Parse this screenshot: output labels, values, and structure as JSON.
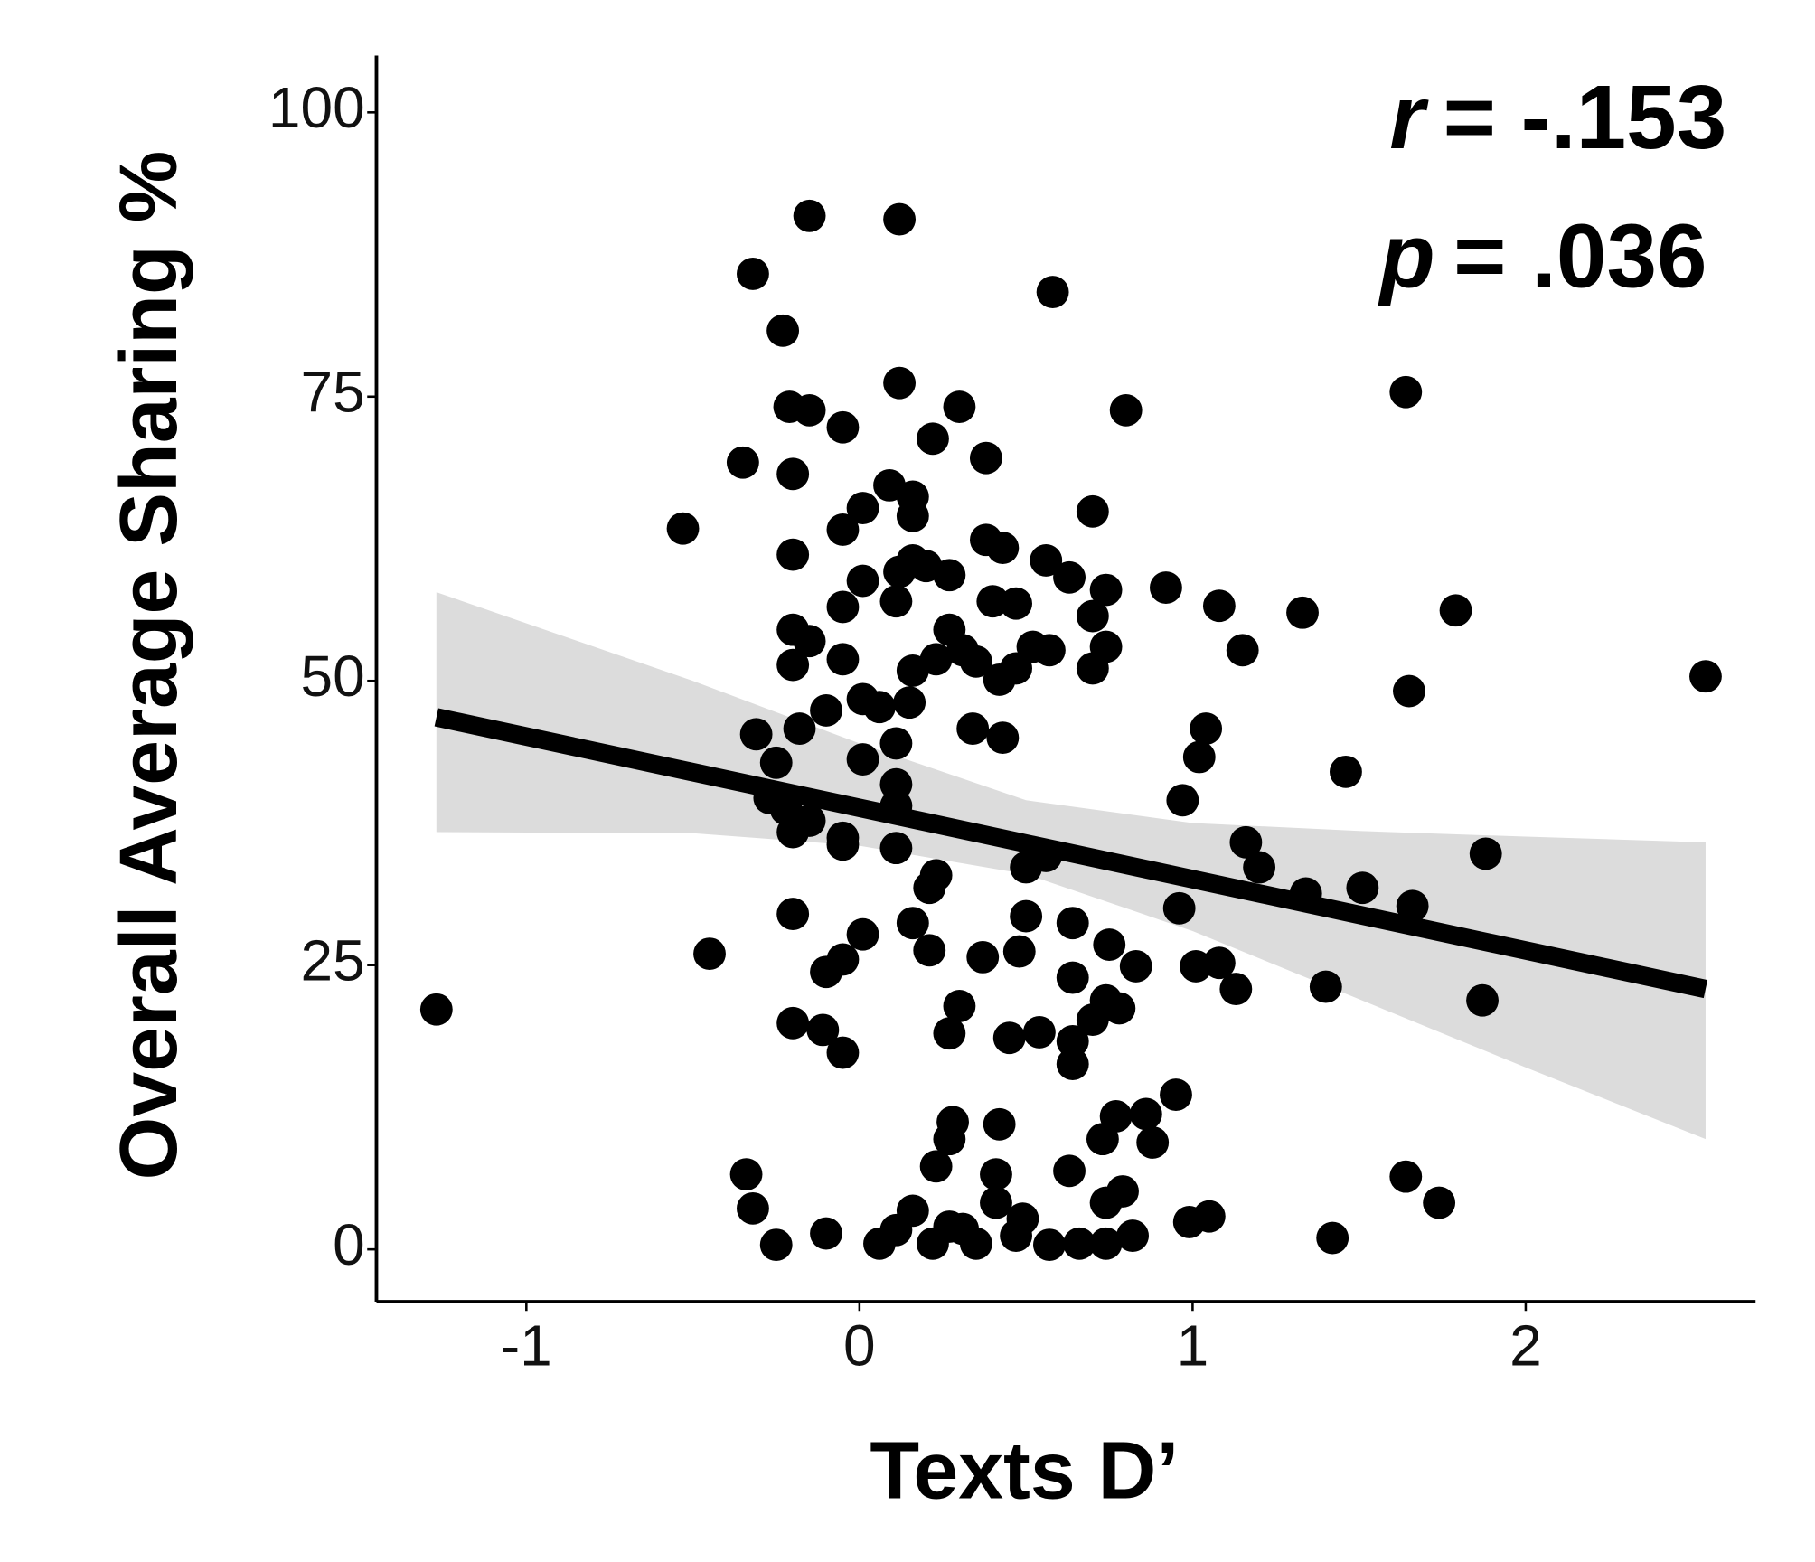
{
  "chart_data": {
    "type": "scatter",
    "x_label": "Texts D’",
    "y_label": "Overall Average Sharing %",
    "annotations": [
      {
        "symbol": "r",
        "text": "= -.153"
      },
      {
        "symbol": "p",
        "text": "= .036"
      }
    ],
    "xlim": [
      -1.45,
      2.69
    ],
    "ylim": [
      -4.6,
      105
    ],
    "xticks": [
      -1,
      0,
      1,
      2
    ],
    "yticks": [
      0,
      25,
      50,
      75,
      100
    ],
    "point_color": "#000000",
    "line_color": "#000000",
    "band_color": "#dcdcdc",
    "series": [
      {
        "x": [
          -1.27,
          -0.53,
          -0.45,
          -0.35,
          -0.32,
          -0.34,
          -0.32,
          -0.25,
          -0.23,
          -0.21,
          -0.15,
          -0.2,
          -0.2,
          -0.15,
          -0.05,
          -0.2,
          -0.15,
          -0.2,
          -0.31,
          -0.25,
          -0.27,
          -0.22,
          -0.15,
          -0.2,
          -0.18,
          -0.1,
          -0.05,
          -0.2,
          -0.2,
          -0.11,
          -0.05,
          -0.1,
          -0.05,
          0.01,
          -0.1,
          0.06,
          0.11,
          0.16,
          0.22,
          0.27,
          0.31,
          0.35,
          0.41,
          0.47,
          0.49,
          0.57,
          0.66,
          0.74,
          0.82,
          0.74,
          0.79,
          0.63,
          0.41,
          0.23,
          0.27,
          0.28,
          0.42,
          0.73,
          0.77,
          0.86,
          0.88,
          0.95,
          0.99,
          1.05,
          1.42,
          1.64,
          1.74,
          0.12,
          0.58,
          0.12,
          0.3,
          0.22,
          0.38,
          0.8,
          1.64,
          0.09,
          0.16,
          0.16,
          0.01,
          -0.05,
          0.7,
          0.38,
          0.43,
          0.16,
          0.12,
          0.2,
          0.27,
          0.01,
          0.11,
          -0.05,
          0.56,
          0.63,
          0.74,
          0.7,
          0.4,
          0.47,
          0.92,
          1.08,
          1.33,
          1.79,
          0.27,
          0.31,
          0.23,
          0.16,
          -0.05,
          0.35,
          0.52,
          0.57,
          0.74,
          0.7,
          0.47,
          0.42,
          1.15,
          1.65,
          2.54,
          0.15,
          0.01,
          0.06,
          0.34,
          0.43,
          0.11,
          0.01,
          1.04,
          1.02,
          1.46,
          0.11,
          0.11,
          0.97,
          0.11,
          -0.05,
          1.16,
          1.2,
          0.56,
          0.5,
          0.23,
          0.21,
          1.34,
          1.51,
          1.66,
          1.88,
          0.96,
          0.5,
          0.64,
          0.16,
          0.21,
          0.37,
          0.48,
          0.75,
          0.83,
          0.64,
          1.01,
          1.08,
          1.13,
          1.4,
          1.87,
          0.3,
          0.27,
          0.45,
          0.54,
          0.74,
          0.78,
          0.7,
          0.64,
          0.64
        ],
        "y": [
          21.1,
          63.4,
          26.0,
          69.2,
          85.8,
          6.6,
          3.6,
          0.4,
          80.8,
          74.1,
          73.8,
          68.2,
          61.1,
          90.9,
          72.3,
          54.5,
          53.5,
          51.4,
          45.3,
          42.8,
          39.7,
          38.7,
          37.7,
          36.7,
          45.8,
          47.4,
          36.2,
          29.5,
          19.9,
          19.3,
          17.3,
          24.4,
          25.5,
          27.7,
          1.4,
          0.5,
          1.7,
          3.4,
          0.5,
          2.0,
          1.8,
          0.5,
          4.1,
          1.2,
          2.7,
          0.4,
          0.5,
          0.5,
          1.2,
          4.1,
          5.1,
          6.9,
          6.6,
          7.3,
          9.7,
          11.2,
          11.0,
          9.7,
          11.7,
          11.9,
          9.4,
          13.6,
          2.4,
          2.9,
          1.0,
          6.4,
          4.1,
          90.6,
          84.2,
          76.2,
          74.1,
          71.3,
          69.6,
          73.8,
          75.4,
          67.2,
          66.2,
          64.5,
          65.2,
          63.3,
          64.9,
          62.4,
          61.7,
          60.6,
          59.6,
          60.1,
          59.3,
          58.8,
          57.0,
          56.5,
          60.6,
          59.1,
          58.0,
          55.7,
          57.0,
          56.8,
          58.2,
          56.6,
          56.0,
          56.2,
          54.5,
          52.7,
          51.9,
          50.9,
          51.9,
          51.7,
          53.0,
          52.7,
          53.0,
          51.1,
          51.1,
          50.1,
          52.7,
          49.1,
          50.4,
          48.1,
          48.4,
          47.7,
          45.8,
          45.0,
          44.5,
          43.1,
          45.8,
          43.3,
          42.0,
          40.9,
          39.0,
          39.5,
          35.3,
          35.6,
          35.8,
          33.6,
          34.6,
          33.6,
          32.9,
          31.8,
          31.3,
          31.8,
          30.2,
          34.8,
          30.0,
          29.3,
          28.7,
          28.7,
          26.3,
          25.7,
          26.2,
          26.8,
          24.9,
          23.9,
          24.9,
          25.2,
          22.9,
          23.1,
          21.9,
          21.4,
          19.0,
          18.6,
          19.1,
          21.9,
          21.2,
          20.2,
          18.3,
          16.3
        ]
      }
    ],
    "fit": {
      "x": [
        -1.27,
        2.54
      ],
      "y": [
        46.8,
        22.9
      ]
    },
    "band": {
      "x": [
        -1.27,
        -0.5,
        0,
        0.5,
        1,
        1.5,
        2,
        2.54
      ],
      "upper": [
        57.8,
        50,
        44.5,
        39.5,
        37.5,
        36.8,
        36.3,
        35.8
      ],
      "lower": [
        36.7,
        36.6,
        35.5,
        33.0,
        28.0,
        22,
        16,
        9.7
      ]
    }
  }
}
